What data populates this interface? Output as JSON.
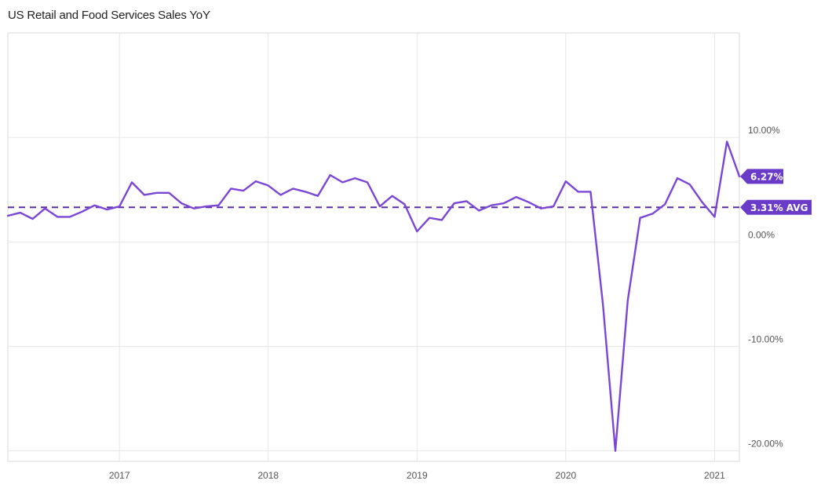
{
  "chart_data": {
    "type": "line",
    "title": "US Retail and Food Services Sales YoY",
    "xlabel": "",
    "ylabel": "",
    "x_ticks": [
      {
        "date": "2017-01",
        "label": "2017"
      },
      {
        "date": "2018-01",
        "label": "2018"
      },
      {
        "date": "2019-01",
        "label": "2019"
      },
      {
        "date": "2020-01",
        "label": "2020"
      },
      {
        "date": "2021-01",
        "label": "2021"
      }
    ],
    "y_ticks": [
      {
        "value": 10,
        "label": "10.00%"
      },
      {
        "value": 0,
        "label": "0.00%"
      },
      {
        "value": -10,
        "label": "-10.00%"
      },
      {
        "value": -20,
        "label": "-20.00%"
      }
    ],
    "xlim": [
      "2016-04",
      "2021-03"
    ],
    "ylim": [
      -21,
      20
    ],
    "grid": true,
    "line_color": "#7b46d6",
    "average": {
      "value": 3.31,
      "label": "3.31% AVG"
    },
    "last_value": {
      "value": 6.27,
      "label": "6.27%"
    },
    "series": [
      {
        "x": [
          "2016-04",
          "2016-05",
          "2016-06",
          "2016-07",
          "2016-08",
          "2016-09",
          "2016-10",
          "2016-11",
          "2016-12",
          "2017-01",
          "2017-02",
          "2017-03",
          "2017-04",
          "2017-05",
          "2017-06",
          "2017-07",
          "2017-08",
          "2017-09",
          "2017-10",
          "2017-11",
          "2017-12",
          "2018-01",
          "2018-02",
          "2018-03",
          "2018-04",
          "2018-05",
          "2018-06",
          "2018-07",
          "2018-08",
          "2018-09",
          "2018-10",
          "2018-11",
          "2018-12",
          "2019-01",
          "2019-02",
          "2019-03",
          "2019-04",
          "2019-05",
          "2019-06",
          "2019-07",
          "2019-08",
          "2019-09",
          "2019-10",
          "2019-11",
          "2019-12",
          "2020-01",
          "2020-02",
          "2020-03",
          "2020-04",
          "2020-05",
          "2020-06",
          "2020-07",
          "2020-08",
          "2020-09",
          "2020-10",
          "2020-11",
          "2020-12",
          "2021-01",
          "2021-02",
          "2021-03"
        ],
        "values": [
          2.5,
          2.8,
          2.2,
          3.2,
          2.4,
          2.4,
          2.9,
          3.5,
          3.1,
          3.4,
          5.7,
          4.5,
          4.7,
          4.7,
          3.7,
          3.2,
          3.4,
          3.5,
          5.1,
          4.9,
          5.8,
          5.4,
          4.5,
          5.1,
          4.8,
          4.4,
          6.4,
          5.7,
          6.1,
          5.7,
          3.4,
          4.4,
          3.6,
          1.0,
          2.3,
          2.1,
          3.7,
          3.9,
          3.0,
          3.5,
          3.7,
          4.3,
          3.8,
          3.2,
          3.4,
          5.8,
          4.8,
          4.8,
          -6.0,
          -20.0,
          -5.6,
          2.3,
          2.7,
          3.6,
          6.1,
          5.5,
          3.8,
          2.4,
          9.6,
          6.27
        ]
      }
    ]
  }
}
